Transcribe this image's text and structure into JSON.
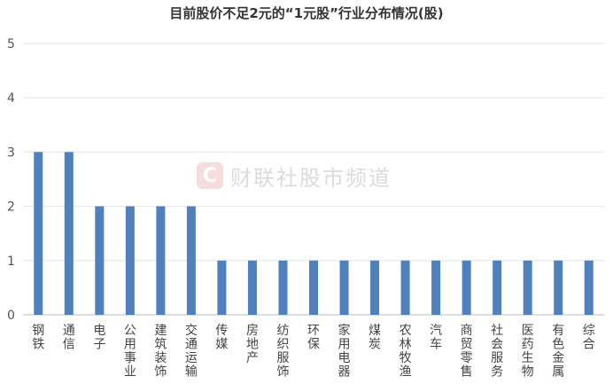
{
  "chart_data": {
    "type": "bar",
    "title": "目前股价不足2元的“1元股”行业分布情况(股)",
    "categories": [
      "钢铁",
      "通信",
      "电子",
      "公用事业",
      "建筑装饰",
      "交通运输",
      "传媒",
      "房地产",
      "纺织服饰",
      "环保",
      "家用电器",
      "煤炭",
      "农林牧渔",
      "汽车",
      "商贸零售",
      "社会服务",
      "医药生物",
      "有色金属",
      "综合"
    ],
    "values": [
      3,
      3,
      2,
      2,
      2,
      2,
      1,
      1,
      1,
      1,
      1,
      1,
      1,
      1,
      1,
      1,
      1,
      1,
      1
    ],
    "ylim": [
      0,
      5
    ],
    "yticks": [
      0,
      1,
      2,
      3,
      4,
      5
    ],
    "grid": true,
    "colors": {
      "bar": "#4f81bd",
      "grid": "#e6e6e6",
      "axis": "#bfbfbf"
    }
  },
  "watermark": {
    "logo": "C",
    "text": "财联社股市频道"
  }
}
